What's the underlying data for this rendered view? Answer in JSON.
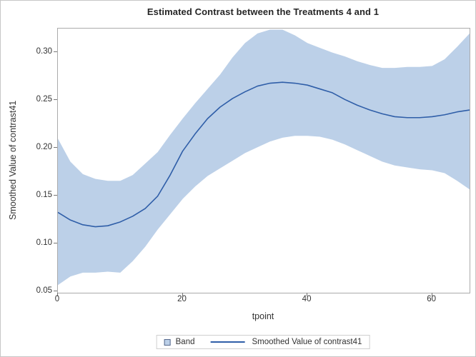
{
  "chart": {
    "title": "Estimated Contrast between the Treatments 4 and 1",
    "xlabel": "tpoint",
    "ylabel": "Smoothed Value of contrast41"
  },
  "legend": {
    "band_label": "Band",
    "line_label": "Smoothed Value of contrast41"
  },
  "colors": {
    "band_fill": "#bcd0e8",
    "line": "#2f5ea8",
    "frame": "#ababab",
    "tick": "#767676",
    "text": "#333333",
    "title_text": "#262626",
    "legend_border": "#cfcfcf",
    "swatch_border": "#55688c",
    "figure_border": "#c6c6c6"
  },
  "chart_data": {
    "type": "line",
    "subtype": "loess-fit-with-confidence-band",
    "title": "Estimated Contrast between the Treatments 4 and 1",
    "xlabel": "tpoint",
    "ylabel": "Smoothed Value of contrast41",
    "xlim": [
      0,
      66
    ],
    "ylim": [
      0.049,
      0.3251
    ],
    "xticks": [
      0,
      20,
      40,
      60
    ],
    "yticks": [
      0.05,
      0.1,
      0.15,
      0.2,
      0.25,
      0.3
    ],
    "grid": false,
    "legend_position": "bottom",
    "x": [
      0,
      2,
      4,
      6,
      8,
      10,
      12,
      14,
      16,
      18,
      20,
      22,
      24,
      26,
      28,
      30,
      32,
      34,
      36,
      38,
      40,
      42,
      44,
      46,
      48,
      50,
      52,
      54,
      56,
      58,
      60,
      62,
      64,
      66
    ],
    "series": [
      {
        "name": "Smoothed Value of contrast41",
        "values": [
          0.133,
          0.125,
          0.12,
          0.118,
          0.119,
          0.123,
          0.129,
          0.137,
          0.15,
          0.172,
          0.197,
          0.215,
          0.231,
          0.243,
          0.252,
          0.259,
          0.265,
          0.268,
          0.269,
          0.268,
          0.266,
          0.262,
          0.258,
          0.251,
          0.245,
          0.24,
          0.236,
          0.233,
          0.232,
          0.232,
          0.233,
          0.235,
          0.238,
          0.24
        ]
      },
      {
        "name": "Band lower limit",
        "values": [
          0.057,
          0.066,
          0.07,
          0.07,
          0.071,
          0.07,
          0.082,
          0.097,
          0.115,
          0.131,
          0.147,
          0.16,
          0.171,
          0.179,
          0.187,
          0.195,
          0.201,
          0.207,
          0.211,
          0.213,
          0.213,
          0.212,
          0.209,
          0.204,
          0.198,
          0.192,
          0.186,
          0.182,
          0.18,
          0.178,
          0.177,
          0.174,
          0.166,
          0.157
        ]
      },
      {
        "name": "Band upper limit",
        "values": [
          0.21,
          0.186,
          0.173,
          0.168,
          0.166,
          0.166,
          0.172,
          0.184,
          0.196,
          0.214,
          0.231,
          0.247,
          0.262,
          0.277,
          0.295,
          0.31,
          0.32,
          0.324,
          0.324,
          0.318,
          0.31,
          0.305,
          0.3,
          0.296,
          0.291,
          0.287,
          0.284,
          0.284,
          0.285,
          0.285,
          0.286,
          0.293,
          0.306,
          0.32
        ]
      }
    ]
  }
}
